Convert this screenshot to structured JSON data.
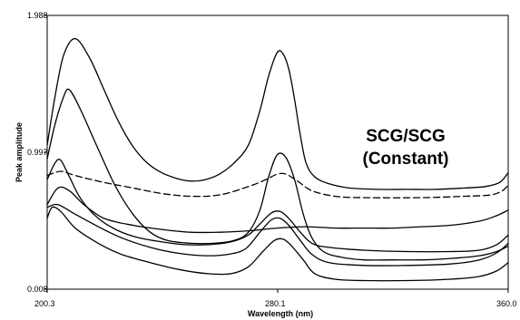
{
  "chart_data": {
    "type": "line",
    "xlabel": "Wavelength (nm)",
    "ylabel": "Peak amplitude",
    "xlim": [
      200.3,
      360.0
    ],
    "ylim": [
      0.008,
      1.988
    ],
    "x_ticks": [
      "200.3",
      "280.1",
      "360.0"
    ],
    "y_ticks": [
      "1.988",
      "0.997",
      "0.008"
    ],
    "annotation": [
      "SCG/SCG",
      "(Constant)"
    ],
    "grid": false,
    "series": [
      {
        "line_style": "solid",
        "points": [
          [
            200.3,
            1.05
          ],
          [
            203,
            1.4
          ],
          [
            206,
            1.7
          ],
          [
            210,
            1.82
          ],
          [
            215,
            1.68
          ],
          [
            220,
            1.45
          ],
          [
            225,
            1.22
          ],
          [
            230,
            1.04
          ],
          [
            235,
            0.92
          ],
          [
            240,
            0.85
          ],
          [
            245,
            0.81
          ],
          [
            250,
            0.79
          ],
          [
            255,
            0.8
          ],
          [
            260,
            0.84
          ],
          [
            265,
            0.92
          ],
          [
            270,
            1.05
          ],
          [
            274,
            1.3
          ],
          [
            277,
            1.55
          ],
          [
            280,
            1.72
          ],
          [
            282,
            1.71
          ],
          [
            284,
            1.6
          ],
          [
            286,
            1.38
          ],
          [
            288,
            1.12
          ],
          [
            290,
            0.92
          ],
          [
            293,
            0.82
          ],
          [
            298,
            0.77
          ],
          [
            305,
            0.74
          ],
          [
            315,
            0.73
          ],
          [
            325,
            0.73
          ],
          [
            335,
            0.73
          ],
          [
            345,
            0.74
          ],
          [
            352,
            0.75
          ],
          [
            357,
            0.78
          ],
          [
            360,
            0.85
          ]
        ]
      },
      {
        "line_style": "solid",
        "points": [
          [
            200.3,
            0.95
          ],
          [
            203,
            1.2
          ],
          [
            206,
            1.4
          ],
          [
            208,
            1.45
          ],
          [
            212,
            1.3
          ],
          [
            218,
            1.02
          ],
          [
            224,
            0.75
          ],
          [
            230,
            0.55
          ],
          [
            236,
            0.42
          ],
          [
            242,
            0.36
          ],
          [
            250,
            0.34
          ],
          [
            258,
            0.34
          ],
          [
            265,
            0.36
          ],
          [
            270,
            0.42
          ],
          [
            274,
            0.58
          ],
          [
            277,
            0.82
          ],
          [
            280,
            0.98
          ],
          [
            283,
            0.96
          ],
          [
            286,
            0.8
          ],
          [
            289,
            0.55
          ],
          [
            292,
            0.38
          ],
          [
            296,
            0.28
          ],
          [
            302,
            0.24
          ],
          [
            310,
            0.22
          ],
          [
            320,
            0.22
          ],
          [
            330,
            0.22
          ],
          [
            340,
            0.23
          ],
          [
            350,
            0.25
          ],
          [
            356,
            0.28
          ],
          [
            360,
            0.32
          ]
        ]
      },
      {
        "line_style": "dashed",
        "points": [
          [
            200.3,
            0.83
          ],
          [
            205,
            0.86
          ],
          [
            210,
            0.83
          ],
          [
            220,
            0.78
          ],
          [
            230,
            0.74
          ],
          [
            240,
            0.7
          ],
          [
            250,
            0.68
          ],
          [
            260,
            0.69
          ],
          [
            270,
            0.75
          ],
          [
            276,
            0.8
          ],
          [
            280,
            0.84
          ],
          [
            283,
            0.84
          ],
          [
            287,
            0.79
          ],
          [
            292,
            0.72
          ],
          [
            300,
            0.68
          ],
          [
            310,
            0.67
          ],
          [
            330,
            0.67
          ],
          [
            345,
            0.68
          ],
          [
            354,
            0.69
          ],
          [
            358,
            0.72
          ],
          [
            360,
            0.76
          ]
        ]
      },
      {
        "line_style": "solid",
        "points": [
          [
            200.3,
            0.8
          ],
          [
            203,
            0.92
          ],
          [
            205,
            0.94
          ],
          [
            208,
            0.82
          ],
          [
            212,
            0.66
          ],
          [
            218,
            0.52
          ],
          [
            225,
            0.43
          ],
          [
            232,
            0.38
          ],
          [
            240,
            0.35
          ],
          [
            248,
            0.33
          ],
          [
            256,
            0.33
          ],
          [
            264,
            0.35
          ],
          [
            270,
            0.4
          ],
          [
            274,
            0.48
          ],
          [
            278,
            0.56
          ],
          [
            281,
            0.57
          ],
          [
            284,
            0.52
          ],
          [
            288,
            0.42
          ],
          [
            292,
            0.34
          ],
          [
            298,
            0.31
          ],
          [
            310,
            0.29
          ],
          [
            325,
            0.28
          ],
          [
            340,
            0.28
          ],
          [
            350,
            0.29
          ],
          [
            356,
            0.33
          ],
          [
            360,
            0.4
          ]
        ]
      },
      {
        "line_style": "solid",
        "points": [
          [
            200.3,
            0.62
          ],
          [
            204,
            0.74
          ],
          [
            208,
            0.72
          ],
          [
            213,
            0.62
          ],
          [
            220,
            0.52
          ],
          [
            230,
            0.47
          ],
          [
            240,
            0.44
          ],
          [
            250,
            0.42
          ],
          [
            260,
            0.42
          ],
          [
            270,
            0.43
          ],
          [
            280,
            0.45
          ],
          [
            290,
            0.46
          ],
          [
            300,
            0.45
          ],
          [
            310,
            0.45
          ],
          [
            320,
            0.45
          ],
          [
            330,
            0.46
          ],
          [
            340,
            0.47
          ],
          [
            350,
            0.5
          ],
          [
            356,
            0.54
          ],
          [
            360,
            0.58
          ]
        ]
      },
      {
        "line_style": "solid",
        "points": [
          [
            200.3,
            0.6
          ],
          [
            204,
            0.62
          ],
          [
            210,
            0.55
          ],
          [
            218,
            0.46
          ],
          [
            226,
            0.38
          ],
          [
            236,
            0.31
          ],
          [
            245,
            0.27
          ],
          [
            255,
            0.25
          ],
          [
            263,
            0.26
          ],
          [
            269,
            0.3
          ],
          [
            274,
            0.42
          ],
          [
            278,
            0.51
          ],
          [
            281,
            0.52
          ],
          [
            284,
            0.47
          ],
          [
            288,
            0.36
          ],
          [
            292,
            0.26
          ],
          [
            298,
            0.2
          ],
          [
            310,
            0.18
          ],
          [
            325,
            0.18
          ],
          [
            340,
            0.19
          ],
          [
            350,
            0.22
          ],
          [
            356,
            0.27
          ],
          [
            360,
            0.34
          ]
        ]
      },
      {
        "line_style": "solid",
        "points": [
          [
            200.3,
            0.52
          ],
          [
            202,
            0.6
          ],
          [
            205,
            0.57
          ],
          [
            210,
            0.45
          ],
          [
            218,
            0.34
          ],
          [
            226,
            0.26
          ],
          [
            236,
            0.2
          ],
          [
            246,
            0.15
          ],
          [
            256,
            0.12
          ],
          [
            264,
            0.12
          ],
          [
            270,
            0.17
          ],
          [
            275,
            0.28
          ],
          [
            279,
            0.36
          ],
          [
            282,
            0.37
          ],
          [
            285,
            0.32
          ],
          [
            289,
            0.22
          ],
          [
            293,
            0.12
          ],
          [
            300,
            0.08
          ],
          [
            310,
            0.07
          ],
          [
            325,
            0.07
          ],
          [
            340,
            0.08
          ],
          [
            350,
            0.1
          ],
          [
            356,
            0.14
          ],
          [
            360,
            0.2
          ]
        ]
      }
    ]
  }
}
